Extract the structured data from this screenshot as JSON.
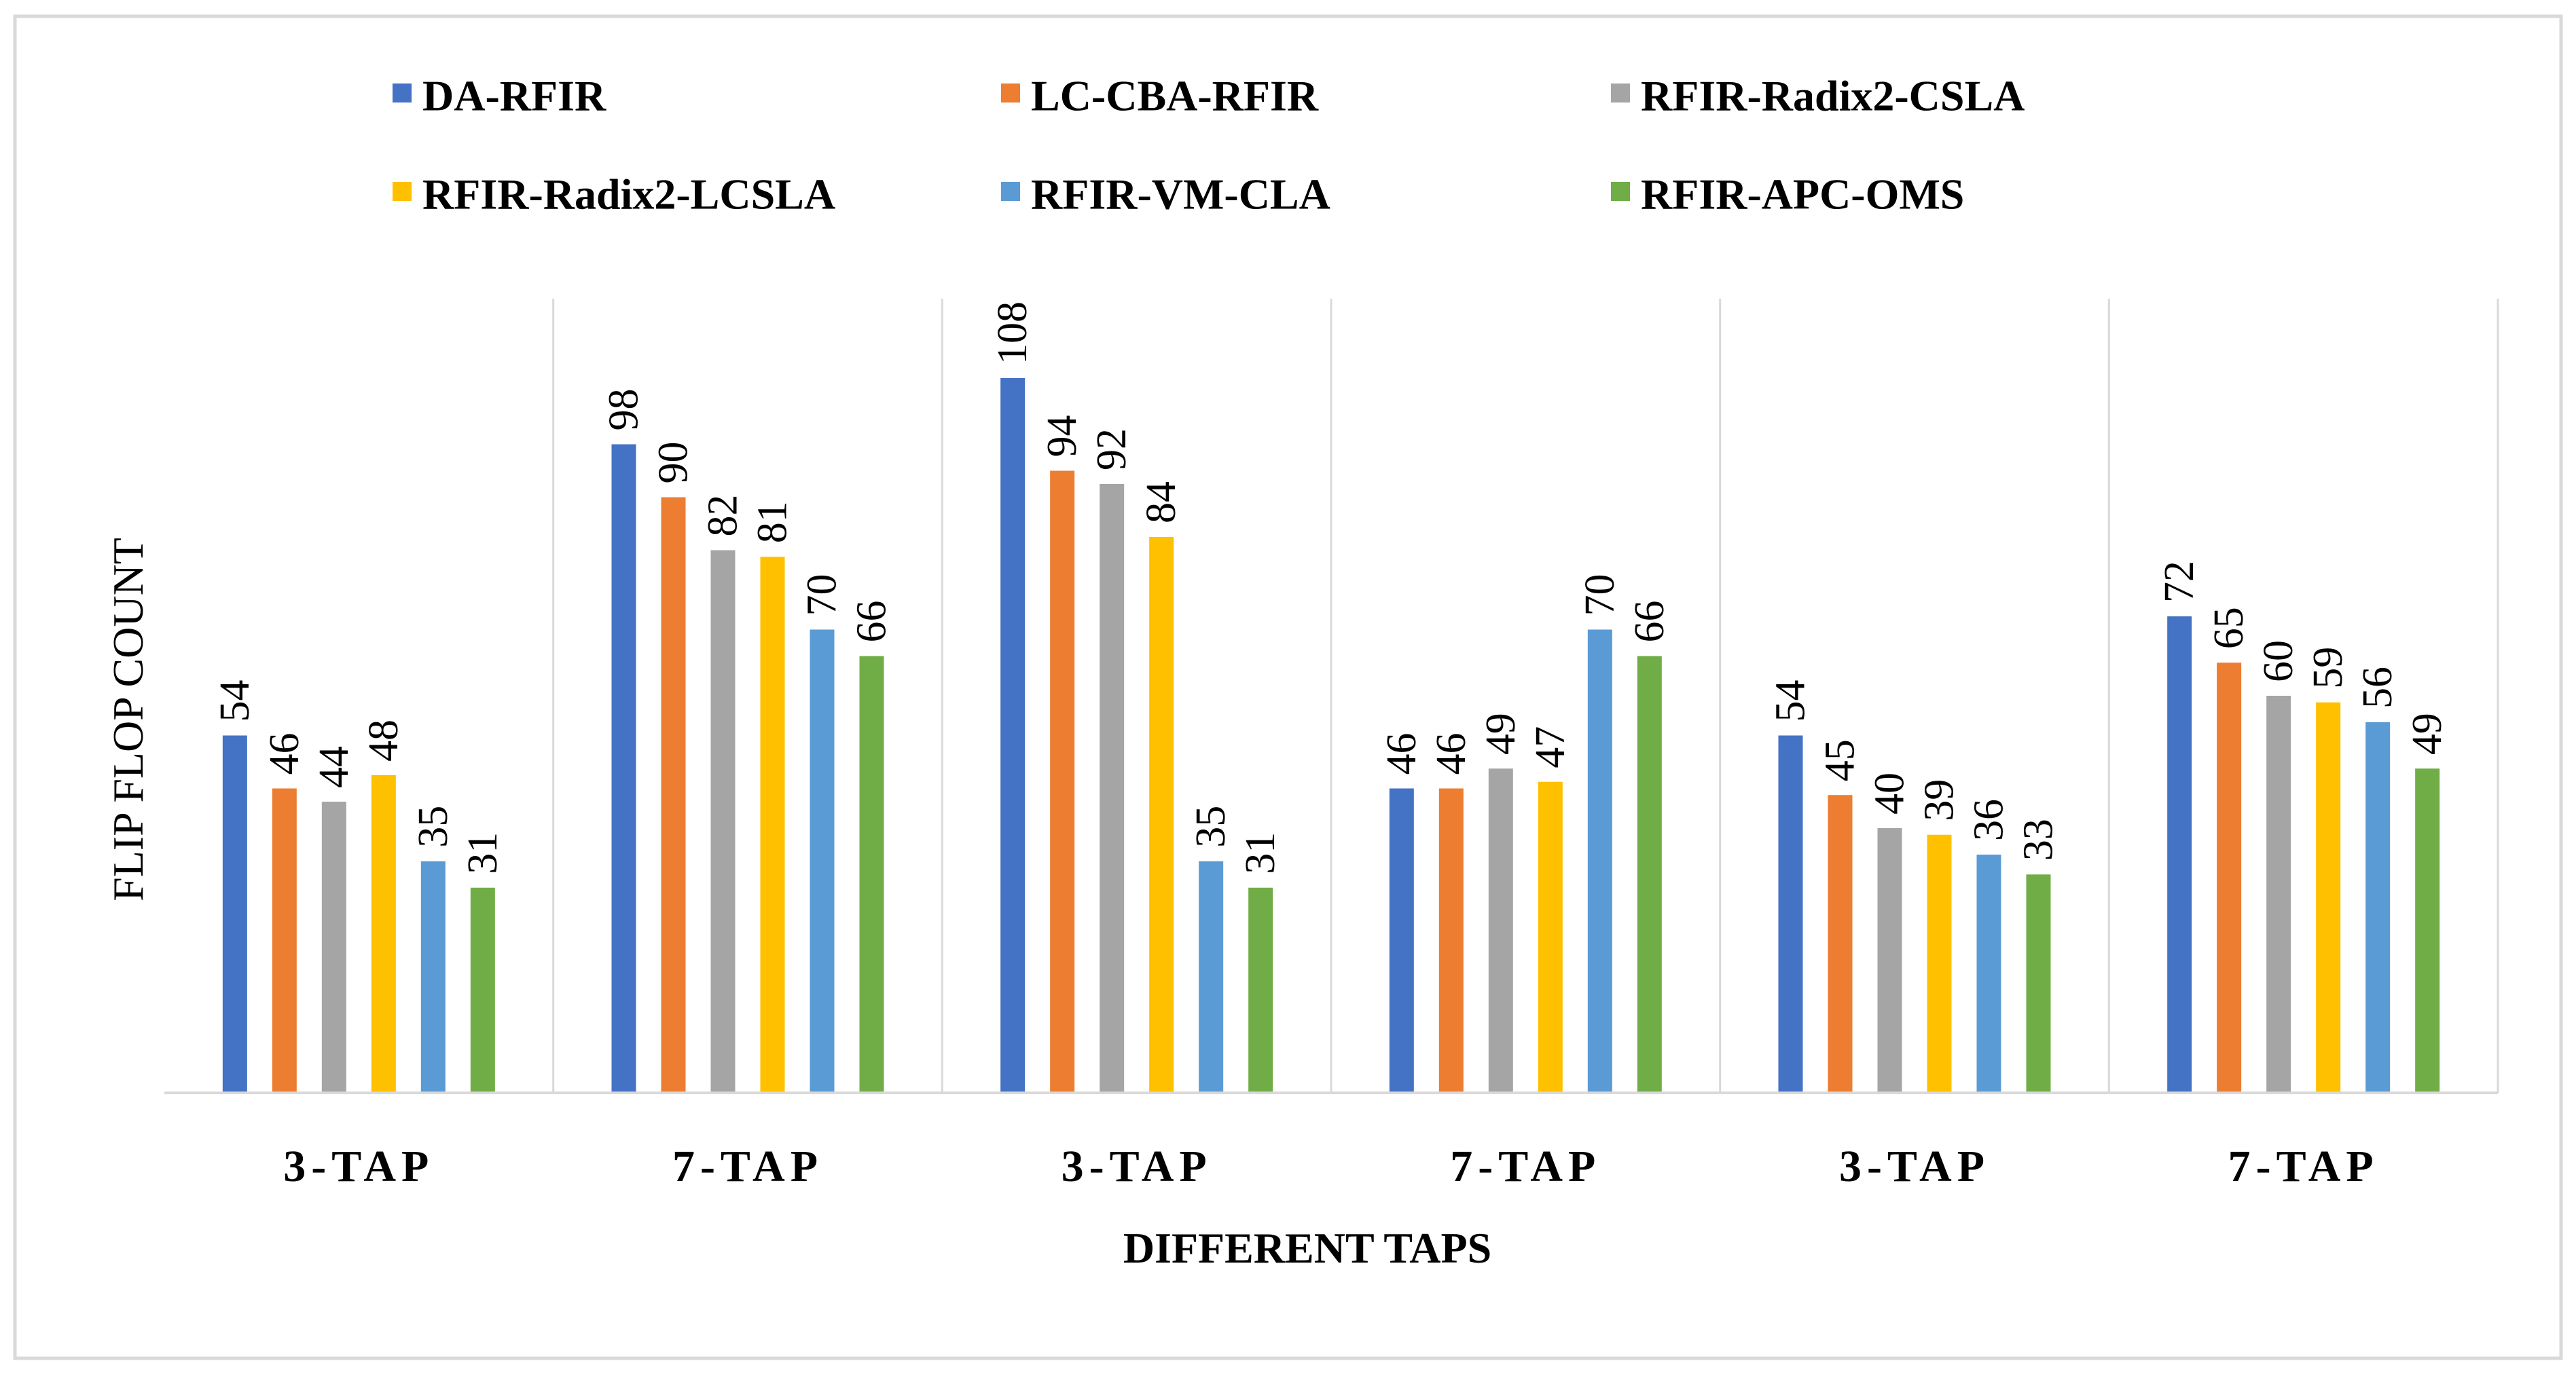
{
  "chart_data": {
    "type": "bar",
    "title": "",
    "xlabel": "DIFFERENT TAPS",
    "ylabel": "FLIP FLOP COUNT",
    "categories": [
      "3-TAP",
      "7-TAP",
      "3-TAP",
      "7-TAP",
      "3-TAP",
      "7-TAP"
    ],
    "ylim": [
      0,
      120
    ],
    "grid": false,
    "legend_position": "top",
    "series": [
      {
        "name": "DA-RFIR",
        "color": "#4472C4",
        "values": [
          54,
          98,
          108,
          46,
          54,
          72
        ]
      },
      {
        "name": "LC-CBA-RFIR",
        "color": "#ED7D31",
        "values": [
          46,
          90,
          94,
          46,
          45,
          65
        ]
      },
      {
        "name": "RFIR-Radix2-CSLA",
        "color": "#A5A5A5",
        "values": [
          44,
          82,
          92,
          49,
          40,
          60
        ]
      },
      {
        "name": "RFIR-Radix2-LCSLA",
        "color": "#FFC000",
        "values": [
          48,
          81,
          84,
          47,
          39,
          59
        ]
      },
      {
        "name": "RFIR-VM-CLA",
        "color": "#5B9BD5",
        "values": [
          35,
          70,
          35,
          70,
          36,
          56
        ]
      },
      {
        "name": "RFIR-APC-OMS",
        "color": "#70AD47",
        "values": [
          31,
          66,
          31,
          66,
          33,
          49
        ]
      }
    ]
  }
}
